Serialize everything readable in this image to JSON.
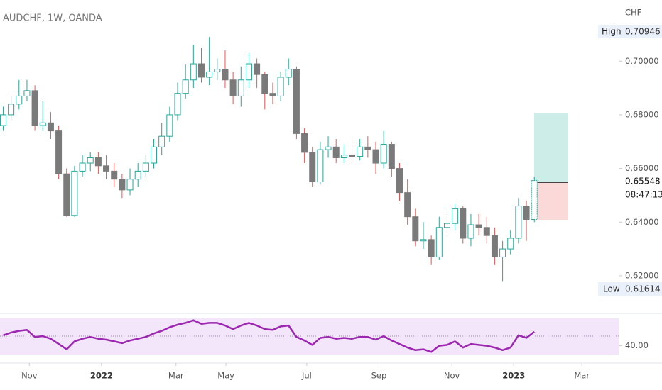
{
  "chart_data": {
    "type": "candlestick",
    "title": "AUDCHF, 1W, OANDA",
    "currency": "CHF",
    "high_marker": {
      "label": "High",
      "price": "0.70946"
    },
    "low_marker": {
      "label": "Low",
      "price": "0.61614"
    },
    "last_price": "0.65548",
    "countdown": "08:47:13",
    "up_color": "#26a69a",
    "down_color": "#7a7a7a",
    "down_wick_color": "#ef5350",
    "xlim": [
      -0.4,
      78
    ],
    "xticks": [
      {
        "value": 3.3,
        "label": "Nov"
      },
      {
        "value": 12.4,
        "label": "2022"
      },
      {
        "value": 21.8,
        "label": "Mar"
      },
      {
        "value": 28.1,
        "label": "May"
      },
      {
        "value": 38.3,
        "label": "Jul"
      },
      {
        "value": 47.4,
        "label": "Sep"
      },
      {
        "value": 56.6,
        "label": "Nov"
      },
      {
        "value": 64.4,
        "label": "2023"
      },
      {
        "value": 73.0,
        "label": "Mar"
      }
    ],
    "ylim": [
      0.6065,
      0.7228
    ],
    "yticks": [
      {
        "value": 0.62,
        "label": "0.62000"
      },
      {
        "value": 0.64,
        "label": "0.64000"
      },
      {
        "value": 0.66,
        "label": "0.66000"
      },
      {
        "value": 0.68,
        "label": "0.68000"
      },
      {
        "value": 0.7,
        "label": "0.70000"
      }
    ],
    "open": [
      0.676,
      0.68,
      0.684,
      0.687,
      0.689,
      0.676,
      0.677,
      0.674,
      0.658,
      0.6425,
      0.659,
      0.662,
      0.664,
      0.661,
      0.659,
      0.656,
      0.652,
      0.656,
      0.659,
      0.662,
      0.668,
      0.672,
      0.68,
      0.688,
      0.693,
      0.699,
      0.694,
      0.696,
      0.697,
      0.693,
      0.687,
      0.693,
      0.699,
      0.695,
      0.688,
      0.687,
      0.694,
      0.697,
      0.673,
      0.666,
      0.655,
      0.667,
      0.668,
      0.664,
      0.665,
      0.6645,
      0.668,
      0.667,
      0.662,
      0.669,
      0.66,
      0.651,
      0.642,
      0.633,
      0.6335,
      0.627,
      0.638,
      0.6395,
      0.645,
      0.634,
      0.639,
      0.638,
      0.635,
      0.627,
      0.63,
      0.634,
      0.646,
      0.641
    ],
    "high": [
      0.683,
      0.687,
      0.693,
      0.693,
      0.691,
      0.685,
      0.681,
      0.676,
      0.66,
      0.661,
      0.665,
      0.666,
      0.666,
      0.665,
      0.662,
      0.658,
      0.66,
      0.662,
      0.665,
      0.671,
      0.677,
      0.683,
      0.692,
      0.699,
      0.706,
      0.705,
      0.709,
      0.701,
      0.704,
      0.696,
      0.698,
      0.703,
      0.701,
      0.696,
      0.692,
      0.696,
      0.701,
      0.698,
      0.675,
      0.668,
      0.67,
      0.672,
      0.671,
      0.669,
      0.672,
      0.671,
      0.672,
      0.67,
      0.674,
      0.67,
      0.662,
      0.656,
      0.645,
      0.64,
      0.635,
      0.642,
      0.643,
      0.647,
      0.646,
      0.643,
      0.643,
      0.642,
      0.638,
      0.633,
      0.637,
      0.649,
      0.648,
      0.657
    ],
    "low": [
      0.674,
      0.678,
      0.682,
      0.685,
      0.674,
      0.674,
      0.671,
      0.656,
      0.642,
      0.642,
      0.657,
      0.659,
      0.658,
      0.656,
      0.653,
      0.649,
      0.65,
      0.653,
      0.657,
      0.66,
      0.665,
      0.67,
      0.678,
      0.686,
      0.69,
      0.692,
      0.691,
      0.693,
      0.69,
      0.684,
      0.683,
      0.69,
      0.69,
      0.682,
      0.684,
      0.685,
      0.691,
      0.671,
      0.662,
      0.653,
      0.654,
      0.664,
      0.662,
      0.662,
      0.662,
      0.663,
      0.664,
      0.658,
      0.66,
      0.657,
      0.648,
      0.639,
      0.631,
      0.63,
      0.624,
      0.626,
      0.636,
      0.637,
      0.632,
      0.631,
      0.635,
      0.632,
      0.624,
      0.618,
      0.628,
      0.632,
      0.633,
      0.64
    ],
    "close": [
      0.68,
      0.684,
      0.687,
      0.689,
      0.676,
      0.677,
      0.674,
      0.658,
      0.6425,
      0.659,
      0.662,
      0.664,
      0.661,
      0.659,
      0.656,
      0.652,
      0.656,
      0.659,
      0.662,
      0.668,
      0.672,
      0.68,
      0.688,
      0.693,
      0.699,
      0.694,
      0.696,
      0.697,
      0.693,
      0.687,
      0.693,
      0.699,
      0.695,
      0.688,
      0.687,
      0.694,
      0.697,
      0.673,
      0.666,
      0.655,
      0.667,
      0.668,
      0.664,
      0.665,
      0.6645,
      0.668,
      0.667,
      0.662,
      0.669,
      0.66,
      0.651,
      0.642,
      0.633,
      0.6335,
      0.627,
      0.638,
      0.6395,
      0.645,
      0.634,
      0.639,
      0.638,
      0.635,
      0.627,
      0.63,
      0.634,
      0.646,
      0.641,
      0.6555
    ],
    "rsi": {
      "color": "#9c27b0",
      "ylim": [
        30,
        72
      ],
      "yticks": [
        {
          "value": 40,
          "label": "40.00"
        }
      ],
      "values": [
        52,
        55,
        57,
        58,
        50,
        51,
        48,
        42,
        36,
        45,
        48,
        50,
        48,
        47,
        45,
        43,
        46,
        48,
        50,
        54,
        57,
        61,
        64,
        66,
        69,
        65,
        66,
        66,
        63,
        59,
        63,
        66,
        63,
        59,
        58,
        62,
        63,
        50,
        46,
        41,
        49,
        50,
        48,
        49,
        48,
        50,
        50,
        47,
        51,
        46,
        42,
        38,
        35,
        36,
        33,
        40,
        41,
        45,
        38,
        42,
        41,
        40,
        38,
        35,
        38,
        52,
        49,
        56
      ]
    }
  }
}
